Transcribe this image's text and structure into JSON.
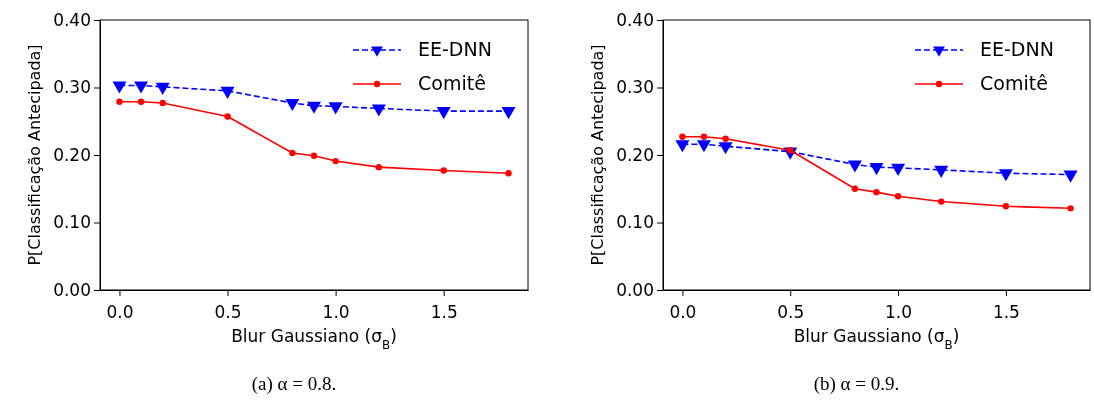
{
  "chart_data": [
    {
      "type": "line",
      "xlabel": "Blur Gaussiano (σ$_{B}$)",
      "ylabel": "P[Classificação Antecipada]",
      "x": [
        0,
        0.1,
        0.2,
        0.5,
        0.8,
        0.9,
        1.0,
        1.2,
        1.5,
        1.8
      ],
      "series": [
        {
          "name": "EE-DNN",
          "color": "#0000ff",
          "marker": "triangle",
          "line_style": "dashed",
          "values": [
            0.303,
            0.303,
            0.301,
            0.295,
            0.277,
            0.273,
            0.272,
            0.269,
            0.265,
            0.265
          ]
        },
        {
          "name": "Comitê",
          "color": "#ff0000",
          "marker": "circle",
          "line_style": "solid",
          "values": [
            0.279,
            0.279,
            0.277,
            0.257,
            0.203,
            0.199,
            0.191,
            0.182,
            0.177,
            0.173
          ]
        }
      ],
      "xlim": [
        -0.09,
        1.89
      ],
      "ylim": [
        0,
        0.4
      ],
      "xticks": [
        {
          "value": 0,
          "label": "0.0"
        },
        {
          "value": 0.5,
          "label": "0.5"
        },
        {
          "value": 1,
          "label": "1.0"
        },
        {
          "value": 1.5,
          "label": "1.5"
        }
      ],
      "yticks": [
        {
          "value": 0,
          "label": "0.00"
        },
        {
          "value": 0.1,
          "label": "0.10"
        },
        {
          "value": 0.2,
          "label": "0.20"
        },
        {
          "value": 0.3,
          "label": "0.30"
        },
        {
          "value": 0.4,
          "label": "0.40"
        }
      ],
      "legend": "top right",
      "grid": false,
      "annotations": [
        "(a) α = 0.8."
      ]
    },
    {
      "type": "line",
      "xlabel": "Blur Gaussiano (σ$_{B}$)",
      "ylabel": "P[Classificação Antecipada]",
      "x": [
        0,
        0.1,
        0.2,
        0.5,
        0.8,
        0.9,
        1.0,
        1.2,
        1.5,
        1.8
      ],
      "series": [
        {
          "name": "EE-DNN",
          "color": "#0000ff",
          "marker": "triangle",
          "line_style": "dashed",
          "values": [
            0.216,
            0.216,
            0.213,
            0.205,
            0.186,
            0.182,
            0.181,
            0.178,
            0.173,
            0.171
          ]
        },
        {
          "name": "Comitê",
          "color": "#ff0000",
          "marker": "circle",
          "line_style": "solid",
          "values": [
            0.227,
            0.227,
            0.224,
            0.207,
            0.15,
            0.145,
            0.139,
            0.131,
            0.124,
            0.121
          ]
        }
      ],
      "xlim": [
        -0.09,
        1.89
      ],
      "ylim": [
        0,
        0.4
      ],
      "xticks": [
        {
          "value": 0,
          "label": "0.0"
        },
        {
          "value": 0.5,
          "label": "0.5"
        },
        {
          "value": 1,
          "label": "1.0"
        },
        {
          "value": 1.5,
          "label": "1.5"
        }
      ],
      "yticks": [
        {
          "value": 0,
          "label": "0.00"
        },
        {
          "value": 0.1,
          "label": "0.10"
        },
        {
          "value": 0.2,
          "label": "0.20"
        },
        {
          "value": 0.3,
          "label": "0.30"
        },
        {
          "value": 0.4,
          "label": "0.40"
        }
      ],
      "legend": "top right",
      "grid": false,
      "annotations": [
        "(b) α = 0.9."
      ]
    }
  ]
}
